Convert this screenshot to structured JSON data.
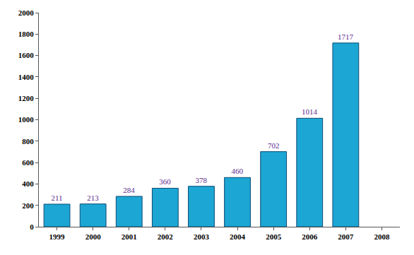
{
  "chart_data": {
    "type": "bar",
    "categories": [
      "1999",
      "2000",
      "2001",
      "2002",
      "2003",
      "2004",
      "2005",
      "2006",
      "2007",
      "2008"
    ],
    "values": [
      211,
      213,
      284,
      360,
      378,
      460,
      702,
      1014,
      1717,
      null
    ],
    "color": "#1ca6d4",
    "ylim": [
      0,
      2000
    ],
    "yticks": [
      0,
      200,
      400,
      600,
      800,
      1000,
      1200,
      1400,
      1600,
      1800,
      2000
    ],
    "grid": false,
    "data_labels": true
  }
}
